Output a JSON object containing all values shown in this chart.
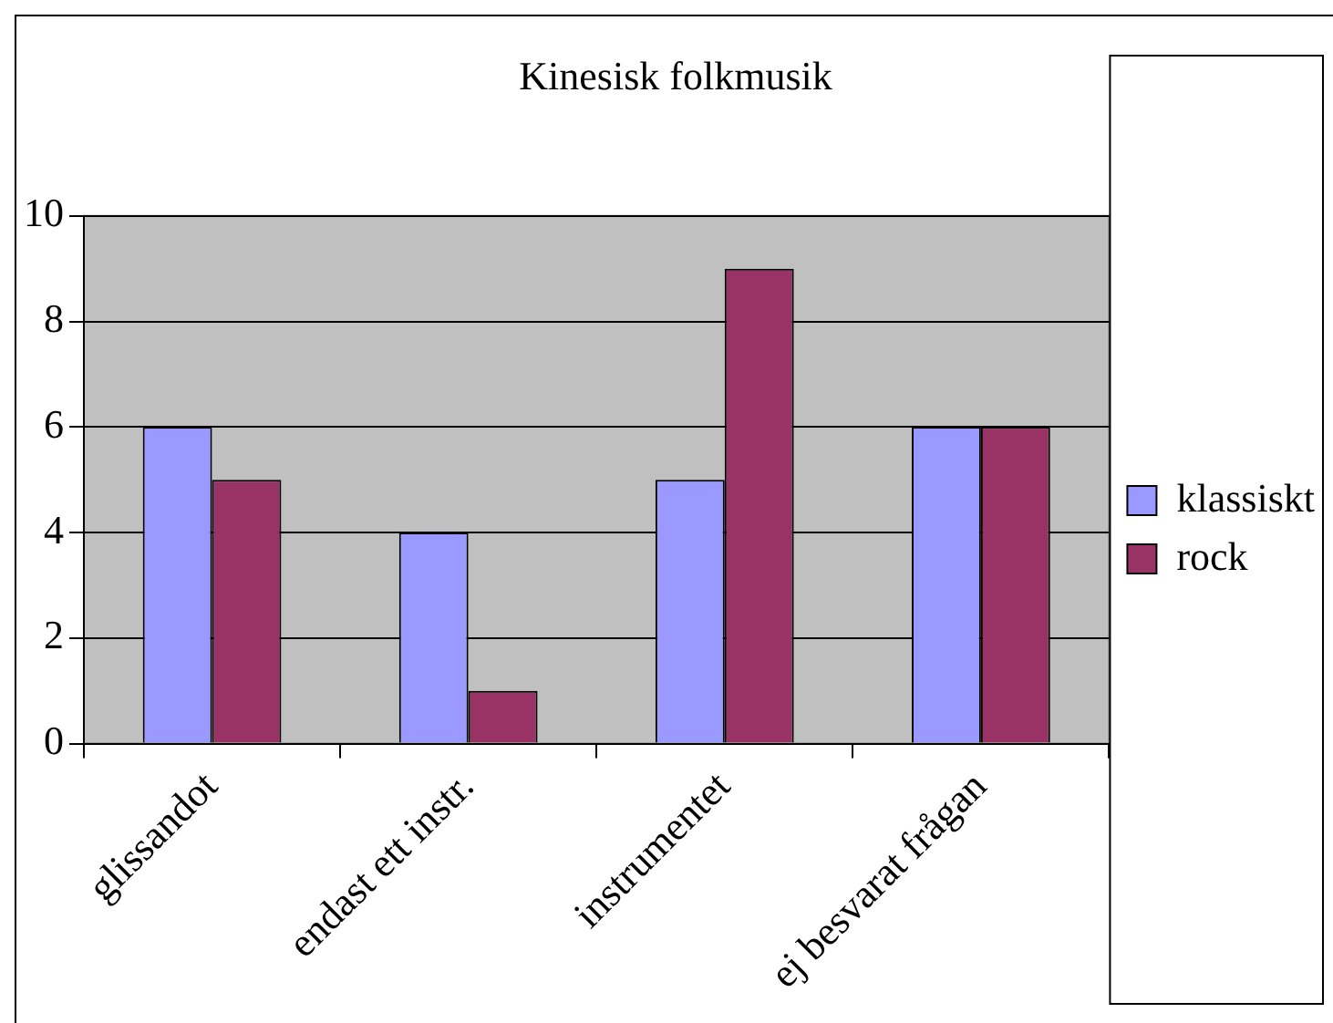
{
  "chart_data": {
    "type": "bar",
    "title": "Kinesisk folkmusik",
    "categories": [
      "glissandot",
      "endast ett instr.",
      "instrumentet",
      "ej besvarat frågan"
    ],
    "series": [
      {
        "name": "klassiskt",
        "color": "#9999ff",
        "values": [
          6,
          4,
          5,
          6
        ]
      },
      {
        "name": "rock",
        "color": "#993366",
        "values": [
          5,
          1,
          9,
          6
        ]
      }
    ],
    "ylim": [
      0,
      10
    ],
    "yticks": [
      0,
      2,
      4,
      6,
      8,
      10
    ],
    "grid": "y",
    "legend": "right"
  }
}
